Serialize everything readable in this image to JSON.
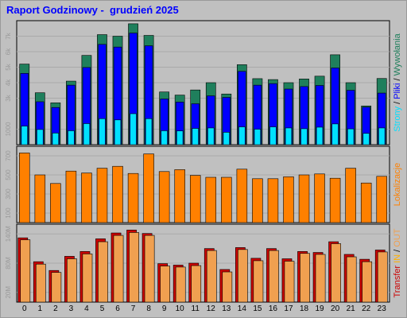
{
  "title": "Raport Godzinowy -  grudzień 2025",
  "chart_data": [
    {
      "type": "bar",
      "panel": "requests",
      "categories": [
        "0",
        "1",
        "2",
        "3",
        "4",
        "5",
        "6",
        "7",
        "8",
        "9",
        "10",
        "11",
        "12",
        "13",
        "14",
        "15",
        "16",
        "17",
        "18",
        "19",
        "20",
        "21",
        "22",
        "23"
      ],
      "series": [
        {
          "name": "Strony",
          "color": "#00e0ff",
          "values": [
            1200,
            980,
            750,
            900,
            1360,
            1680,
            1600,
            2000,
            1680,
            900,
            890,
            1050,
            1080,
            800,
            1150,
            1000,
            1150,
            1080,
            1030,
            1130,
            1340,
            1020,
            730,
            1080
          ]
        },
        {
          "name": "Pliki",
          "color": "#0000ff",
          "values": [
            4600,
            2770,
            2400,
            3840,
            4980,
            6470,
            6300,
            7200,
            6380,
            2950,
            2750,
            2640,
            3150,
            3050,
            4730,
            3840,
            3940,
            3590,
            3750,
            3820,
            4950,
            3510,
            2420,
            3330
          ]
        },
        {
          "name": "Wywołania",
          "color": "#1f7f5c",
          "values": [
            5200,
            3350,
            2700,
            4100,
            5760,
            7100,
            7000,
            7800,
            7050,
            3400,
            3200,
            3530,
            4000,
            3270,
            5160,
            4260,
            4200,
            4000,
            4240,
            4420,
            5800,
            4000,
            2500,
            4270
          ]
        }
      ],
      "ylim": [
        0,
        8000
      ],
      "yticks": [
        "1000",
        "3k",
        "4k",
        "5k",
        "6k",
        "7k"
      ],
      "legend": [
        "Strony",
        "Pliki",
        "Wywołania"
      ]
    },
    {
      "type": "bar",
      "panel": "locations",
      "categories": [
        "0",
        "1",
        "2",
        "3",
        "4",
        "5",
        "6",
        "7",
        "8",
        "9",
        "10",
        "11",
        "12",
        "13",
        "14",
        "15",
        "16",
        "17",
        "18",
        "19",
        "20",
        "21",
        "22",
        "23"
      ],
      "series": [
        {
          "name": "Lokalizacje",
          "color": "#ff8000",
          "values": [
            730,
            500,
            410,
            540,
            520,
            570,
            590,
            515,
            720,
            535,
            555,
            495,
            475,
            475,
            560,
            460,
            460,
            480,
            500,
            510,
            465,
            570,
            415,
            485
          ]
        }
      ],
      "ylim": [
        0,
        800
      ],
      "yticks": [
        "100",
        "300",
        "500",
        "700"
      ],
      "legend": [
        "Lokalizacje"
      ]
    },
    {
      "type": "bar",
      "panel": "transfer",
      "categories": [
        "0",
        "1",
        "2",
        "3",
        "4",
        "5",
        "6",
        "7",
        "8",
        "9",
        "10",
        "11",
        "12",
        "13",
        "14",
        "15",
        "16",
        "17",
        "18",
        "19",
        "20",
        "21",
        "22",
        "23"
      ],
      "series": [
        {
          "name": "IN",
          "color": "#cc0000",
          "values": [
            132,
            83,
            65,
            94,
            104,
            130,
            142,
            148,
            141,
            79,
            76,
            80,
            110,
            67,
            112,
            90,
            110,
            89,
            104,
            102,
            124,
            98,
            88,
            107
          ]
        },
        {
          "name": "OUT",
          "color": "#f0a050",
          "values": [
            128,
            78,
            61,
            89,
            99,
            124,
            137,
            143,
            137,
            74,
            72,
            75,
            106,
            62,
            108,
            85,
            106,
            84,
            100,
            98,
            120,
            93,
            83,
            103
          ]
        }
      ],
      "ylim": [
        0,
        160
      ],
      "yticks": [
        "20M",
        "80M",
        "140M"
      ],
      "legend": [
        "Transfer",
        "IN",
        "/",
        "OUT"
      ]
    }
  ]
}
